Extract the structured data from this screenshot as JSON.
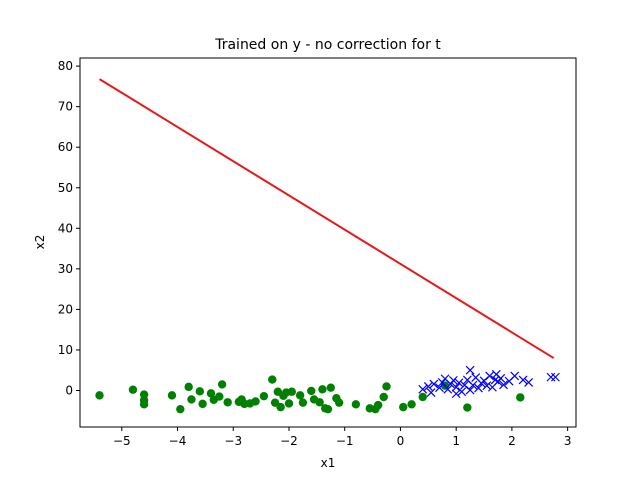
{
  "chart_data": {
    "type": "scatter",
    "title": "Trained on y - no correction for t",
    "xlabel": "x1",
    "ylabel": "x2",
    "xlim": [
      -5.75,
      3.15
    ],
    "ylim": [
      -9,
      82
    ],
    "xticks": [
      -5,
      -4,
      -3,
      -2,
      -1,
      0,
      1,
      2,
      3
    ],
    "yticks": [
      0,
      10,
      20,
      30,
      40,
      50,
      60,
      70,
      80
    ],
    "grid": false,
    "colors": {
      "class0": "#008000",
      "class1": "#0000ff",
      "line": "#e41a1c"
    },
    "series": [
      {
        "marker": "circle",
        "color": "#008000",
        "points": [
          [
            -5.4,
            -1.2
          ],
          [
            -4.8,
            0.2
          ],
          [
            -4.6,
            -1.0
          ],
          [
            -4.6,
            -2.4
          ],
          [
            -4.6,
            -3.4
          ],
          [
            -4.1,
            -1.2
          ],
          [
            -3.95,
            -4.6
          ],
          [
            -3.8,
            0.9
          ],
          [
            -3.75,
            -2.2
          ],
          [
            -3.6,
            -0.2
          ],
          [
            -3.55,
            -3.3
          ],
          [
            -3.4,
            -0.7
          ],
          [
            -3.35,
            -2.3
          ],
          [
            -3.25,
            -1.5
          ],
          [
            -3.2,
            1.5
          ],
          [
            -3.1,
            -2.9
          ],
          [
            -2.9,
            -2.8
          ],
          [
            -2.85,
            -2.2
          ],
          [
            -2.8,
            -3.3
          ],
          [
            -2.7,
            -3.2
          ],
          [
            -2.6,
            -2.7
          ],
          [
            -2.45,
            -1.4
          ],
          [
            -2.3,
            2.7
          ],
          [
            -2.25,
            -3.0
          ],
          [
            -2.2,
            -0.3
          ],
          [
            -2.15,
            -4.1
          ],
          [
            -2.1,
            -1.3
          ],
          [
            -2.05,
            -0.5
          ],
          [
            -2.0,
            -3.2
          ],
          [
            -1.95,
            -0.3
          ],
          [
            -1.8,
            -1.2
          ],
          [
            -1.75,
            -3.0
          ],
          [
            -1.6,
            -0.1
          ],
          [
            -1.55,
            -2.2
          ],
          [
            -1.45,
            -2.9
          ],
          [
            -1.4,
            0.3
          ],
          [
            -1.35,
            -4.4
          ],
          [
            -1.3,
            -4.6
          ],
          [
            -1.25,
            0.7
          ],
          [
            -1.15,
            -1.9
          ],
          [
            -1.1,
            -3.0
          ],
          [
            -0.8,
            -3.4
          ],
          [
            -0.55,
            -4.4
          ],
          [
            -0.45,
            -4.6
          ],
          [
            -0.4,
            -3.6
          ],
          [
            -0.3,
            -1.6
          ],
          [
            -0.25,
            1.0
          ],
          [
            0.05,
            -4.1
          ],
          [
            0.2,
            -3.4
          ],
          [
            0.4,
            -1.6
          ],
          [
            0.8,
            1.2
          ],
          [
            1.2,
            -4.2
          ],
          [
            2.15,
            -1.7
          ]
        ]
      },
      {
        "marker": "x",
        "color": "#0000ff",
        "points": [
          [
            0.4,
            0.3
          ],
          [
            0.5,
            1.0
          ],
          [
            0.55,
            -0.5
          ],
          [
            0.6,
            1.6
          ],
          [
            0.7,
            0.7
          ],
          [
            0.75,
            2.0
          ],
          [
            0.8,
            2.9
          ],
          [
            0.85,
            0.3
          ],
          [
            0.9,
            1.6
          ],
          [
            0.95,
            2.5
          ],
          [
            1.0,
            -0.8
          ],
          [
            1.0,
            0.8
          ],
          [
            1.05,
            1.9
          ],
          [
            1.1,
            -0.3
          ],
          [
            1.15,
            1.3
          ],
          [
            1.2,
            2.6
          ],
          [
            1.25,
            0.1
          ],
          [
            1.25,
            5.0
          ],
          [
            1.3,
            1.3
          ],
          [
            1.35,
            3.2
          ],
          [
            1.4,
            0.6
          ],
          [
            1.45,
            1.8
          ],
          [
            1.5,
            2.4
          ],
          [
            1.55,
            1.2
          ],
          [
            1.6,
            3.6
          ],
          [
            1.65,
            0.8
          ],
          [
            1.7,
            2.6
          ],
          [
            1.72,
            4.0
          ],
          [
            1.75,
            2.2
          ],
          [
            1.8,
            3.0
          ],
          [
            1.85,
            1.4
          ],
          [
            1.95,
            2.3
          ],
          [
            2.05,
            3.6
          ],
          [
            2.2,
            2.6
          ],
          [
            2.3,
            2.0
          ],
          [
            2.7,
            3.3
          ],
          [
            2.78,
            3.3
          ]
        ]
      }
    ],
    "line": {
      "points": [
        [
          -5.4,
          76.8
        ],
        [
          2.75,
          8.0
        ]
      ],
      "color": "#e41a1c"
    }
  }
}
